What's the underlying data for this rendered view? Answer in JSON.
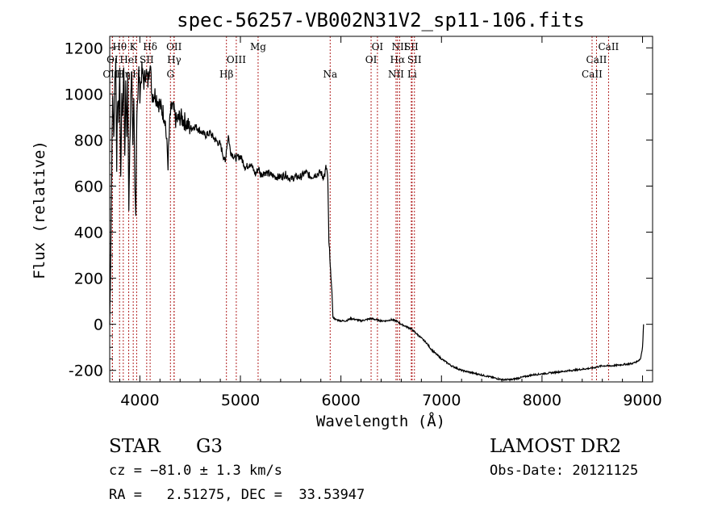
{
  "chart_data": {
    "type": "line",
    "title": "spec-56257-VB002N31V2_sp11-106.fits",
    "xlabel": "Wavelength (Å)",
    "ylabel": "Flux (relative)",
    "xlim": [
      3700,
      9100
    ],
    "ylim": [
      -250,
      1250
    ],
    "xticks": [
      4000,
      5000,
      6000,
      7000,
      8000,
      9000
    ],
    "yticks": [
      -200,
      0,
      200,
      400,
      600,
      800,
      1000,
      1200
    ],
    "series": [
      {
        "x": [
          3700,
          3710,
          3720,
          3730,
          3740,
          3750,
          3760,
          3770,
          3780,
          3790,
          3800,
          3810,
          3820,
          3830,
          3840,
          3850,
          3860,
          3870,
          3880,
          3890,
          3900,
          3910,
          3920,
          3930,
          3940,
          3950,
          3960,
          3970,
          3980,
          3990,
          4000,
          4020,
          4040,
          4060,
          4080,
          4100,
          4120,
          4150,
          4200,
          4250,
          4280,
          4300,
          4320,
          4340,
          4360,
          4400,
          4450,
          4500,
          4550,
          4600,
          4650,
          4700,
          4750,
          4800,
          4850,
          4860,
          4880,
          4900,
          4950,
          5000,
          5050,
          5100,
          5150,
          5180,
          5200,
          5250,
          5300,
          5350,
          5400,
          5450,
          5500,
          5550,
          5600,
          5650,
          5700,
          5750,
          5800,
          5820,
          5840,
          5850,
          5860,
          5870,
          5880,
          5890,
          5900,
          5910,
          5920,
          5950,
          6000,
          6050,
          6100,
          6150,
          6200,
          6250,
          6300,
          6350,
          6400,
          6450,
          6500,
          6550,
          6600,
          6650,
          6700,
          6750,
          6800,
          6850,
          6900,
          6950,
          7000,
          7100,
          7200,
          7300,
          7400,
          7500,
          7600,
          7700,
          7800,
          7900,
          8000,
          8100,
          8200,
          8300,
          8400,
          8500,
          8600,
          8700,
          8800,
          8900,
          8950,
          8980,
          9000,
          9010
        ],
        "y": [
          0,
          300,
          700,
          1000,
          800,
          1050,
          1150,
          700,
          1000,
          900,
          1100,
          600,
          1000,
          900,
          1150,
          700,
          1050,
          800,
          1100,
          500,
          750,
          1000,
          1100,
          800,
          1000,
          550,
          450,
          950,
          1000,
          1100,
          1000,
          1100,
          1050,
          1100,
          1050,
          1150,
          1000,
          1000,
          950,
          900,
          700,
          900,
          950,
          920,
          880,
          900,
          880,
          850,
          860,
          840,
          820,
          830,
          800,
          780,
          700,
          760,
          820,
          750,
          720,
          730,
          680,
          700,
          650,
          680,
          650,
          660,
          650,
          640,
          640,
          650,
          630,
          640,
          640,
          660,
          640,
          650,
          660,
          640,
          650,
          680,
          670,
          620,
          350,
          300,
          200,
          150,
          30,
          20,
          15,
          15,
          25,
          20,
          15,
          20,
          25,
          20,
          15,
          15,
          20,
          15,
          0,
          -10,
          -20,
          -40,
          -60,
          -80,
          -110,
          -130,
          -150,
          -180,
          -200,
          -210,
          -220,
          -230,
          -240,
          -240,
          -230,
          -220,
          -215,
          -210,
          -205,
          -200,
          -195,
          -190,
          -180,
          -180,
          -175,
          -170,
          -160,
          -150,
          -100,
          0
        ],
        "noise": 0.35
      }
    ],
    "line_markers": [
      {
        "label": "Hθ",
        "x": 3798,
        "row": 0
      },
      {
        "label": "K",
        "x": 3934,
        "row": 0
      },
      {
        "label": "Hδ",
        "x": 4102,
        "row": 0
      },
      {
        "label": "OII",
        "x": 4340,
        "row": 0
      },
      {
        "label": "Mg",
        "x": 5176,
        "row": 0
      },
      {
        "label": "OI",
        "x": 6363,
        "row": 0
      },
      {
        "label": "NII",
        "x": 6584,
        "row": 0
      },
      {
        "label": "SII",
        "x": 6700,
        "row": 0
      },
      {
        "label": "CaII",
        "x": 8662,
        "row": 0
      },
      {
        "label": "OI",
        "x": 3727,
        "row": 1
      },
      {
        "label": "HeI",
        "x": 3889,
        "row": 1
      },
      {
        "label": "SII",
        "x": 4068,
        "row": 1
      },
      {
        "label": "Hγ",
        "x": 4341,
        "row": 1
      },
      {
        "label": "OIII",
        "x": 4959,
        "row": 1
      },
      {
        "label": "OI",
        "x": 6300,
        "row": 1
      },
      {
        "label": "Hα",
        "x": 6563,
        "row": 1
      },
      {
        "label": "SII",
        "x": 6731,
        "row": 1
      },
      {
        "label": "CaII",
        "x": 8542,
        "row": 1
      },
      {
        "label": "OIII",
        "x": 3727,
        "row": 2
      },
      {
        "label": "Hη",
        "x": 3835,
        "row": 2
      },
      {
        "label": "H",
        "x": 3968,
        "row": 2
      },
      {
        "label": "G",
        "x": 4304,
        "row": 2
      },
      {
        "label": "Hβ",
        "x": 4861,
        "row": 2
      },
      {
        "label": "Na",
        "x": 5893,
        "row": 2
      },
      {
        "label": "NII",
        "x": 6548,
        "row": 2
      },
      {
        "label": "Li",
        "x": 6708,
        "row": 2
      },
      {
        "label": "CaII",
        "x": 8498,
        "row": 2
      }
    ]
  },
  "info": {
    "class": "STAR",
    "subclass": "G3",
    "survey": "LAMOST DR2",
    "cz": "cz = −81.0 ± 1.3 km/s",
    "obs_date": "Obs-Date: 20121125",
    "radec": "RA =   2.51275, DEC =  33.53947"
  },
  "colors": {
    "line_marker": "#b22222",
    "spectrum": "#000000"
  }
}
